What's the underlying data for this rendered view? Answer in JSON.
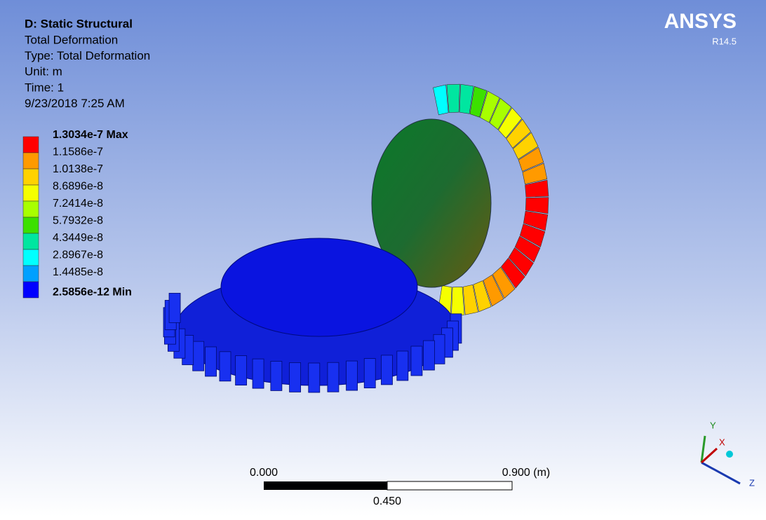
{
  "header": {
    "title": "D: Static Structural",
    "lines": [
      "Total Deformation",
      "Type: Total Deformation",
      "Unit: m",
      "Time: 1",
      "9/23/2018 7:25 AM"
    ]
  },
  "logo": {
    "name": "ANSYS",
    "version": "R14.5"
  },
  "legend": {
    "labels": [
      "1.3034e-7 Max",
      "1.1586e-7",
      "1.0138e-7",
      "8.6896e-8",
      "7.2414e-8",
      "5.7932e-8",
      "4.3449e-8",
      "2.8967e-8",
      "1.4485e-8",
      "2.5856e-12 Min"
    ],
    "colors": [
      "#ff0000",
      "#ff9a00",
      "#ffd200",
      "#f5ff00",
      "#a8ff00",
      "#3ce000",
      "#00e6a0",
      "#00ffff",
      "#00a0ff",
      "#0000ff"
    ]
  },
  "scale_bar": {
    "left": "0.000",
    "right": "0.900 (m)",
    "middle": "0.450"
  },
  "triad": {
    "y": "Y",
    "x": "X",
    "z": "Z"
  }
}
